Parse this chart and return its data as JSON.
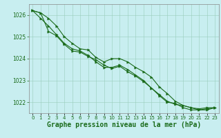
{
  "x": [
    0,
    1,
    2,
    3,
    4,
    5,
    6,
    7,
    8,
    9,
    10,
    11,
    12,
    13,
    14,
    15,
    16,
    17,
    18,
    19,
    20,
    21,
    22,
    23
  ],
  "line1": [
    1026.2,
    1026.1,
    1025.85,
    1025.5,
    1025.0,
    1024.7,
    1024.45,
    1024.4,
    1024.05,
    1023.85,
    1024.0,
    1024.0,
    1023.85,
    1023.6,
    1023.4,
    1023.15,
    1022.7,
    1022.4,
    1022.05,
    1021.85,
    1021.75,
    1021.7,
    1021.75,
    1021.75
  ],
  "line2": [
    1026.2,
    1025.85,
    1025.5,
    1025.1,
    1024.7,
    1024.45,
    1024.35,
    1024.15,
    1023.85,
    1023.6,
    1023.6,
    1023.7,
    1023.5,
    1023.25,
    1023.0,
    1022.65,
    1022.35,
    1022.05,
    1021.9,
    1021.85,
    1021.75,
    1021.65,
    1021.7,
    1021.75
  ],
  "line3": [
    1026.2,
    1026.1,
    1025.25,
    1025.05,
    1024.65,
    1024.35,
    1024.3,
    1024.1,
    1023.95,
    1023.7,
    1023.55,
    1023.65,
    1023.4,
    1023.2,
    1022.95,
    1022.65,
    1022.3,
    1022.0,
    1021.95,
    1021.75,
    1021.65,
    1021.65,
    1021.65,
    1021.75
  ],
  "line_color": "#1a6b1a",
  "bg_color": "#c8eef0",
  "grid_color": "#99ccbb",
  "label_color": "#1a6b1a",
  "ylabel_ticks": [
    1022,
    1023,
    1024,
    1025,
    1026
  ],
  "xlabel": "Graphe pression niveau de la mer (hPa)",
  "ylim": [
    1021.5,
    1026.5
  ],
  "xlim": [
    -0.5,
    23.5
  ],
  "tick_fontsize": 5.5,
  "label_fontsize": 7.0
}
